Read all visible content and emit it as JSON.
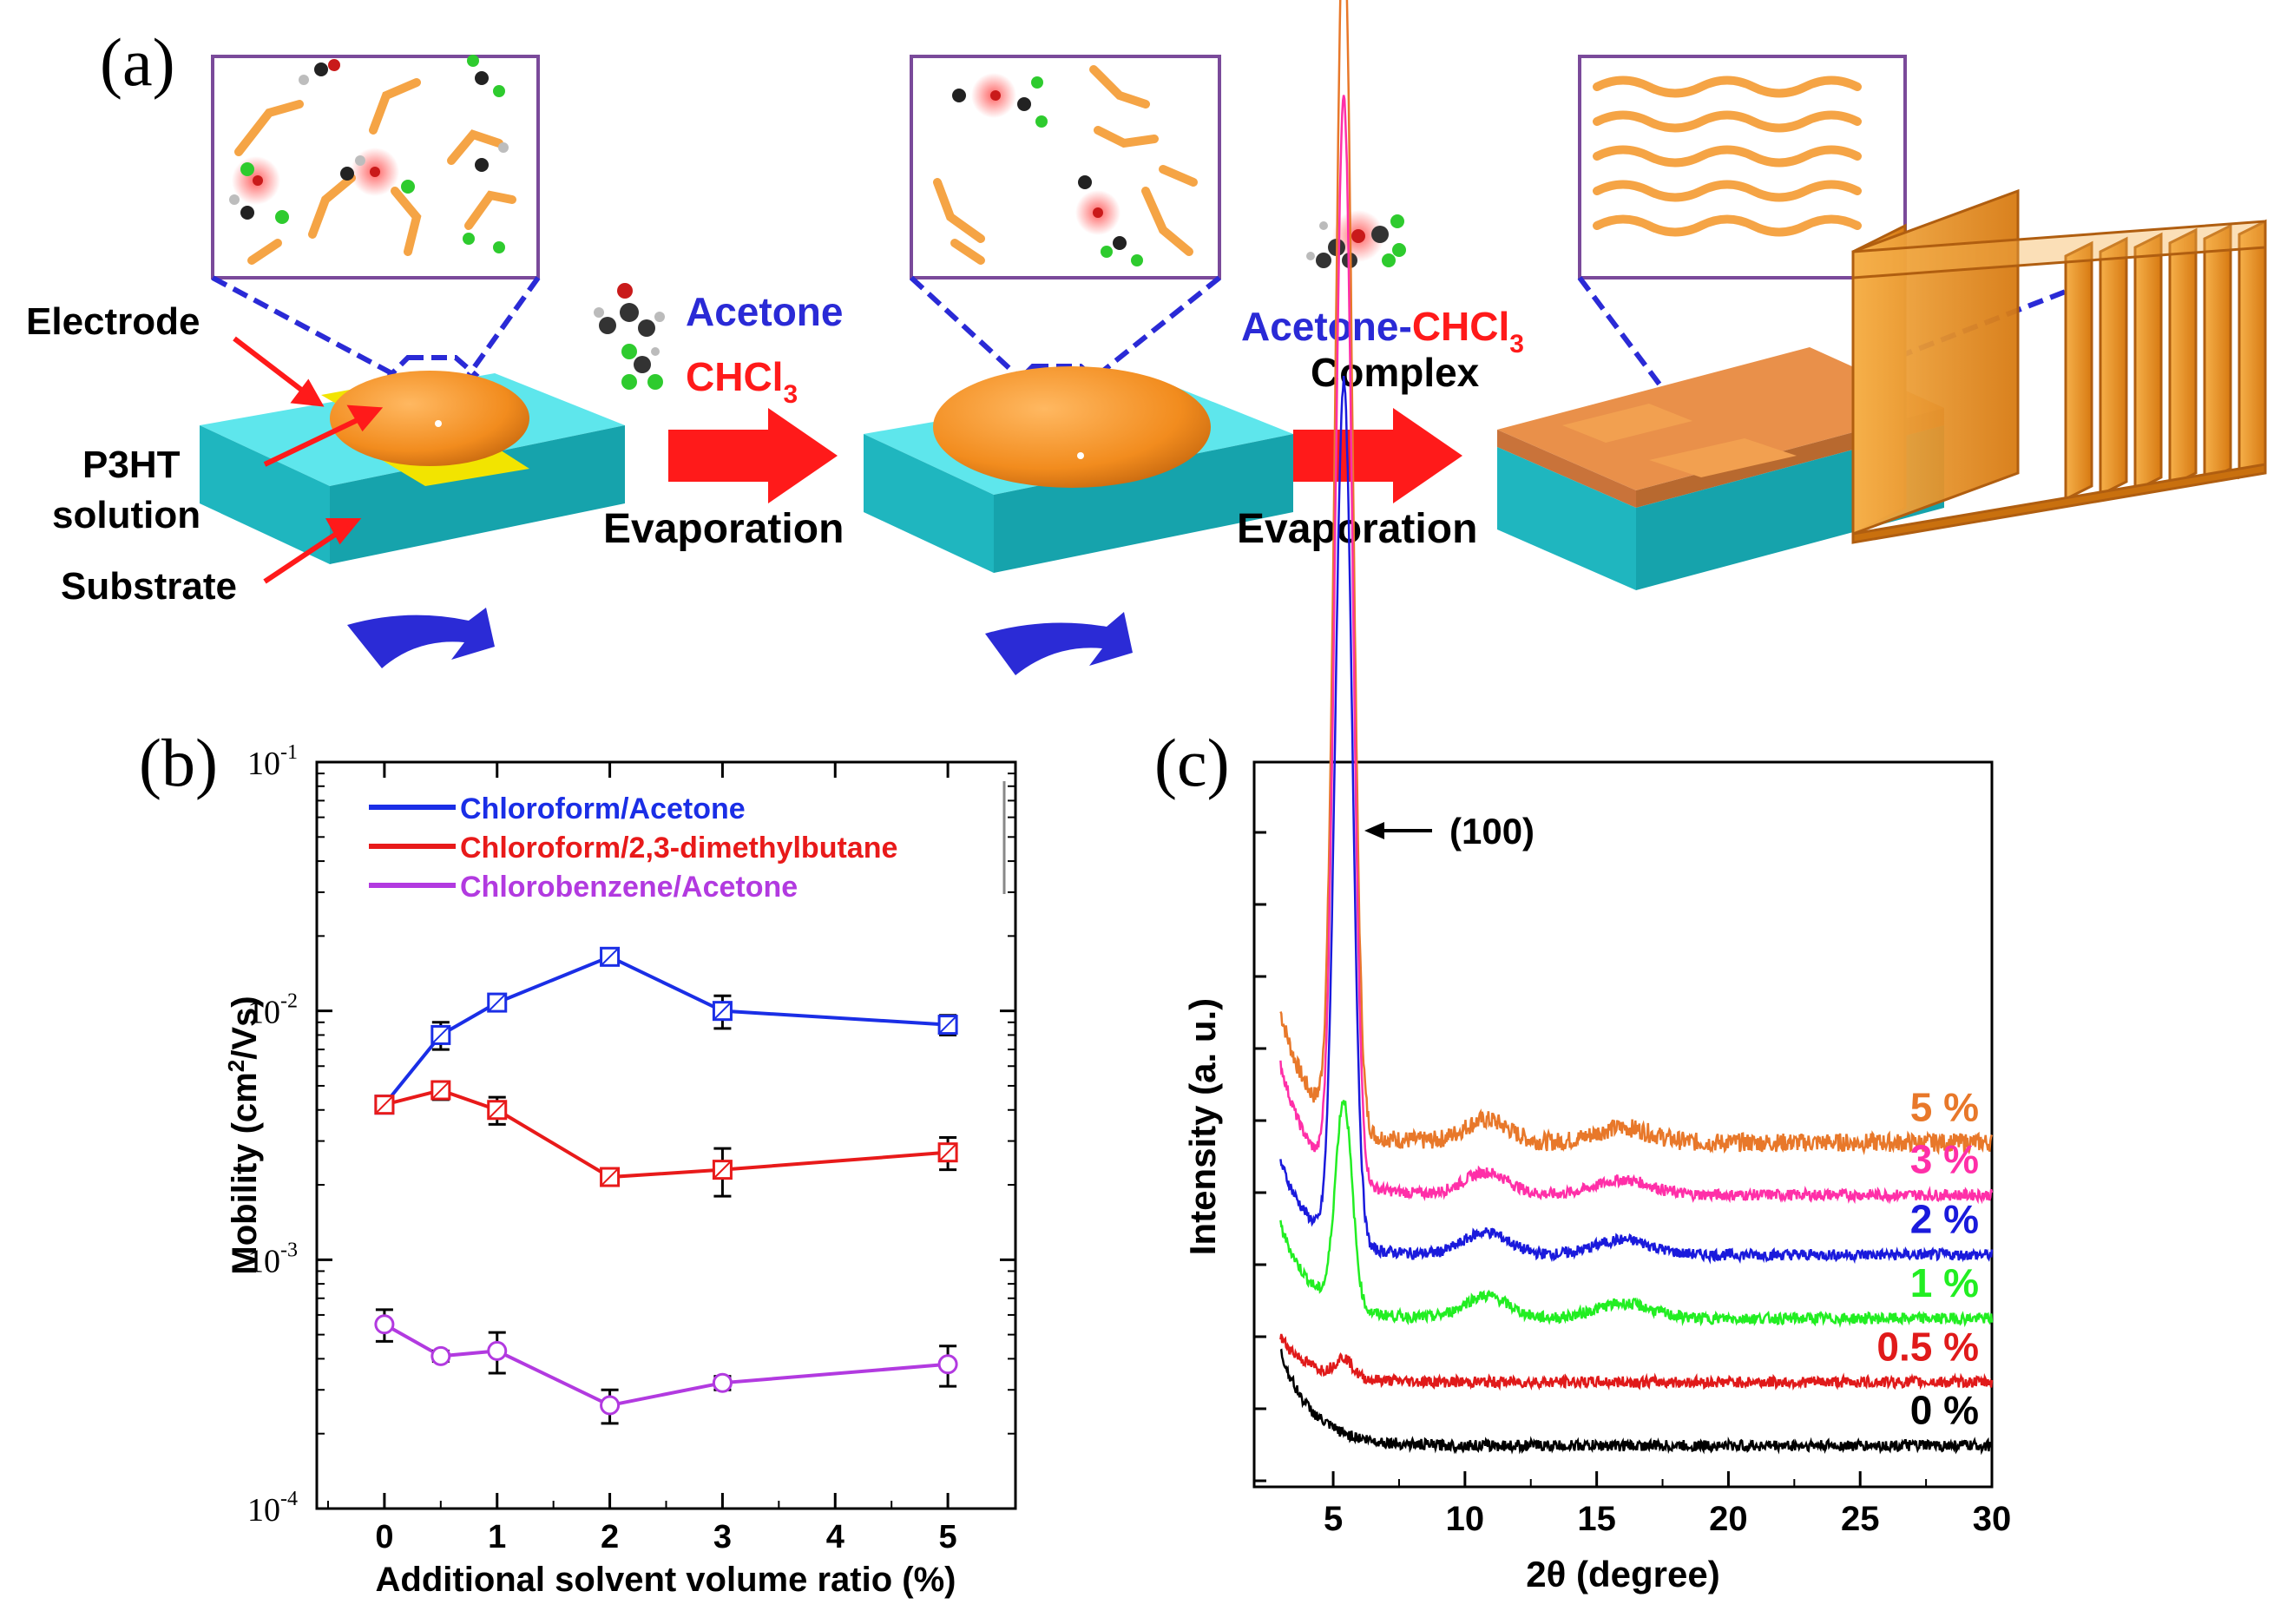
{
  "panel_a": {
    "label": "(a)",
    "electrode": "Electrode",
    "p3ht_line1": "P3HT",
    "p3ht_line2": "solution",
    "substrate": "Substrate",
    "acetone": "Acetone",
    "chcl3": "CHCl",
    "chcl3_sub": "3",
    "evaporation_1": "Evaporation",
    "complex_acetone": "Acetone",
    "complex_dash": "-",
    "complex_chcl3": "CHCl",
    "complex_chcl3_sub": "3",
    "complex_word": "Complex",
    "evaporation_2": "Evaporation",
    "colors": {
      "substrate": "#1fc7cf",
      "film": "#f28c1e",
      "arrow": "#ff1a1a",
      "spin": "#2b2bd6",
      "electrode": "#f2e400"
    }
  },
  "chart_data": [
    {
      "type": "line",
      "panel_label": "(b)",
      "x": [
        0,
        0.5,
        1,
        2,
        3,
        5
      ],
      "series": [
        {
          "name": "Chloroform/Acetone",
          "color": "#1a2ee6",
          "values": [
            0.0042,
            0.008,
            0.0108,
            0.0165,
            0.01,
            0.0088
          ],
          "errors": [
            0.0003,
            0.001,
            0.0007,
            0.001,
            0.0015,
            0.0008
          ]
        },
        {
          "name": "Chloroform/2,3-dimethylbutane",
          "color": "#e81a1a",
          "values": [
            0.0042,
            0.0048,
            0.004,
            0.00215,
            0.0023,
            0.0027
          ],
          "errors": [
            0.0003,
            0.0004,
            0.0005,
            0.0001,
            0.0005,
            0.0004
          ]
        },
        {
          "name": "Chlorobenzene/Acetone",
          "color": "#b23ae0",
          "values": [
            0.00055,
            0.00041,
            0.00043,
            0.00026,
            0.00032,
            0.00038
          ],
          "errors": [
            8e-05,
            2e-05,
            8e-05,
            4e-05,
            2e-05,
            7e-05
          ]
        }
      ],
      "xlabel": "Additional solvent volume ratio (%)",
      "ylabel_prefix": "Mobility (cm",
      "ylabel_sup": "2",
      "ylabel_suffix": "/Vs)",
      "xlim": [
        -0.6,
        5.6
      ],
      "ylim": [
        0.0001,
        0.1
      ],
      "yscale": "log",
      "xticks": [
        "0",
        "1",
        "2",
        "3",
        "4",
        "5"
      ],
      "yticks": [
        {
          "base": "10",
          "exp": "-4"
        },
        {
          "base": "10",
          "exp": "-3"
        },
        {
          "base": "10",
          "exp": "-2"
        },
        {
          "base": "10",
          "exp": "-1"
        }
      ],
      "legend_position": "top-left"
    },
    {
      "type": "line",
      "panel_label": "(c)",
      "xlabel": "2θ (degree)",
      "ylabel": "Intensity (a. u.)",
      "xlim": [
        2,
        30
      ],
      "xticks": [
        "5",
        "10",
        "15",
        "20",
        "25",
        "30"
      ],
      "peak_label": "(100)",
      "peak_position_deg": 5.4,
      "series": [
        {
          "name": "5 %",
          "color": "#e8782a",
          "baseline": 0.92,
          "peak_height": 3.25,
          "low_angle": 0.35
        },
        {
          "name": "3 %",
          "color": "#ff2fa8",
          "baseline": 0.78,
          "peak_height": 2.9,
          "low_angle": 0.35
        },
        {
          "name": "2 %",
          "color": "#1a1adc",
          "baseline": 0.62,
          "peak_height": 2.3,
          "low_angle": 0.25
        },
        {
          "name": "1 %",
          "color": "#22ee22",
          "baseline": 0.45,
          "peak_height": 0.55,
          "low_angle": 0.25
        },
        {
          "name": "0.5 %",
          "color": "#e01a1a",
          "baseline": 0.28,
          "peak_height": 0.05,
          "low_angle": 0.12
        },
        {
          "name": "0 %",
          "color": "#000000",
          "baseline": 0.11,
          "peak_height": 0.0,
          "low_angle": 0.25
        }
      ]
    }
  ]
}
